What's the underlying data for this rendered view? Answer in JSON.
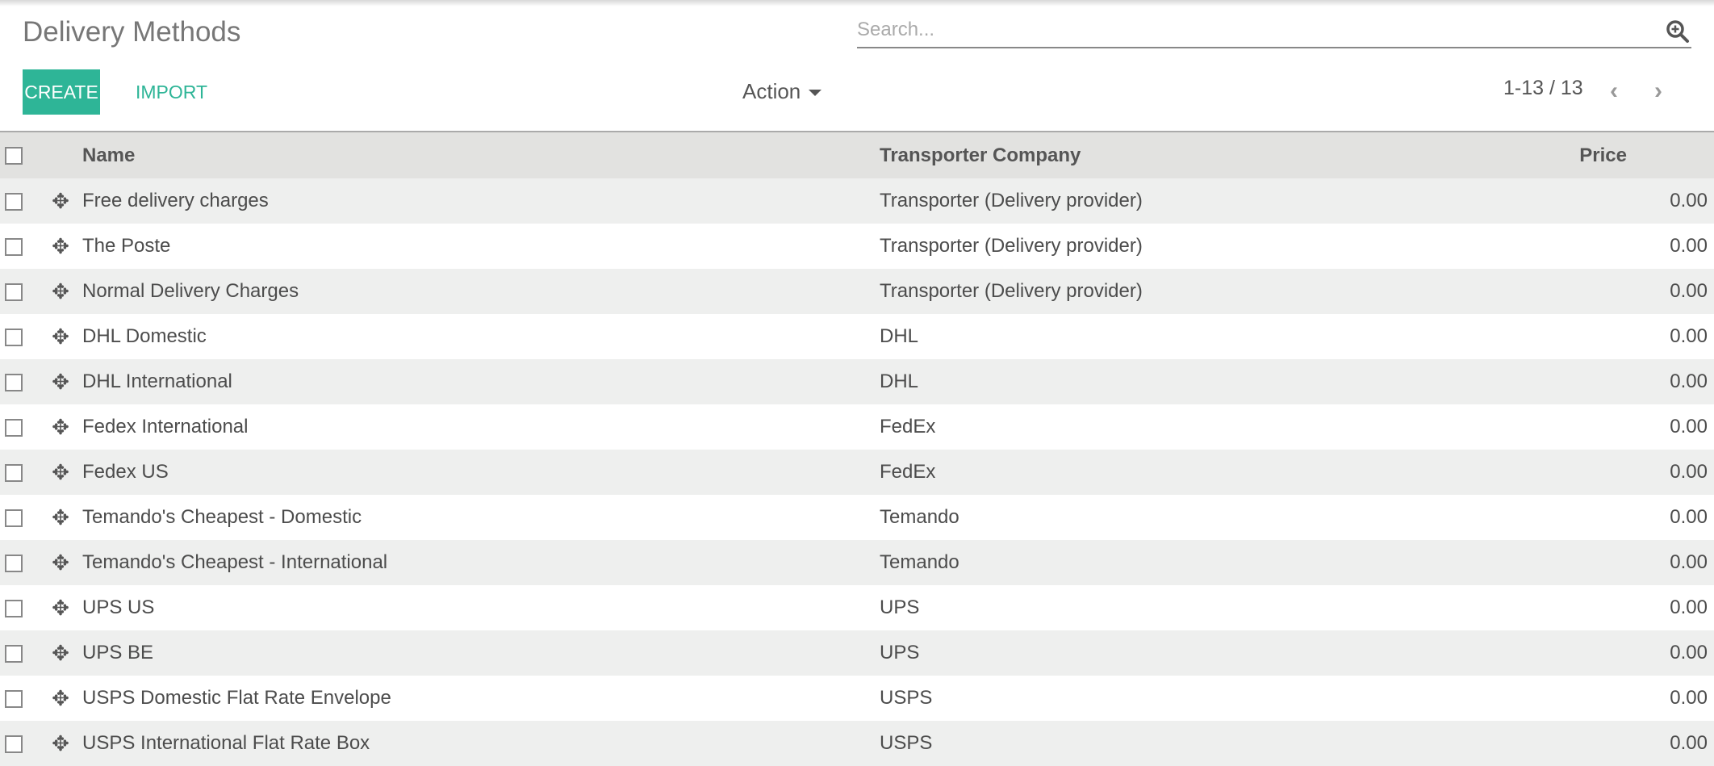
{
  "page_title": "Delivery Methods",
  "search": {
    "placeholder": "Search..."
  },
  "toolbar": {
    "create_label": "CREATE",
    "import_label": "IMPORT",
    "action_label": "Action"
  },
  "pager": {
    "text": "1-13 / 13"
  },
  "colors": {
    "accent": "#2eb597"
  },
  "table": {
    "headers": {
      "name": "Name",
      "company": "Transporter Company",
      "price": "Price"
    },
    "rows": [
      {
        "name": "Free delivery charges",
        "company": "Transporter (Delivery provider)",
        "price": "0.00"
      },
      {
        "name": "The Poste",
        "company": "Transporter (Delivery provider)",
        "price": "0.00"
      },
      {
        "name": "Normal Delivery Charges",
        "company": "Transporter (Delivery provider)",
        "price": "0.00"
      },
      {
        "name": "DHL Domestic",
        "company": "DHL",
        "price": "0.00"
      },
      {
        "name": "DHL International",
        "company": "DHL",
        "price": "0.00"
      },
      {
        "name": "Fedex International",
        "company": "FedEx",
        "price": "0.00"
      },
      {
        "name": "Fedex US",
        "company": "FedEx",
        "price": "0.00"
      },
      {
        "name": "Temando's Cheapest - Domestic",
        "company": "Temando",
        "price": "0.00"
      },
      {
        "name": "Temando's Cheapest - International",
        "company": "Temando",
        "price": "0.00"
      },
      {
        "name": "UPS US",
        "company": "UPS",
        "price": "0.00"
      },
      {
        "name": "UPS BE",
        "company": "UPS",
        "price": "0.00"
      },
      {
        "name": "USPS Domestic Flat Rate Envelope",
        "company": "USPS",
        "price": "0.00"
      },
      {
        "name": "USPS International Flat Rate Box",
        "company": "USPS",
        "price": "0.00"
      }
    ]
  }
}
